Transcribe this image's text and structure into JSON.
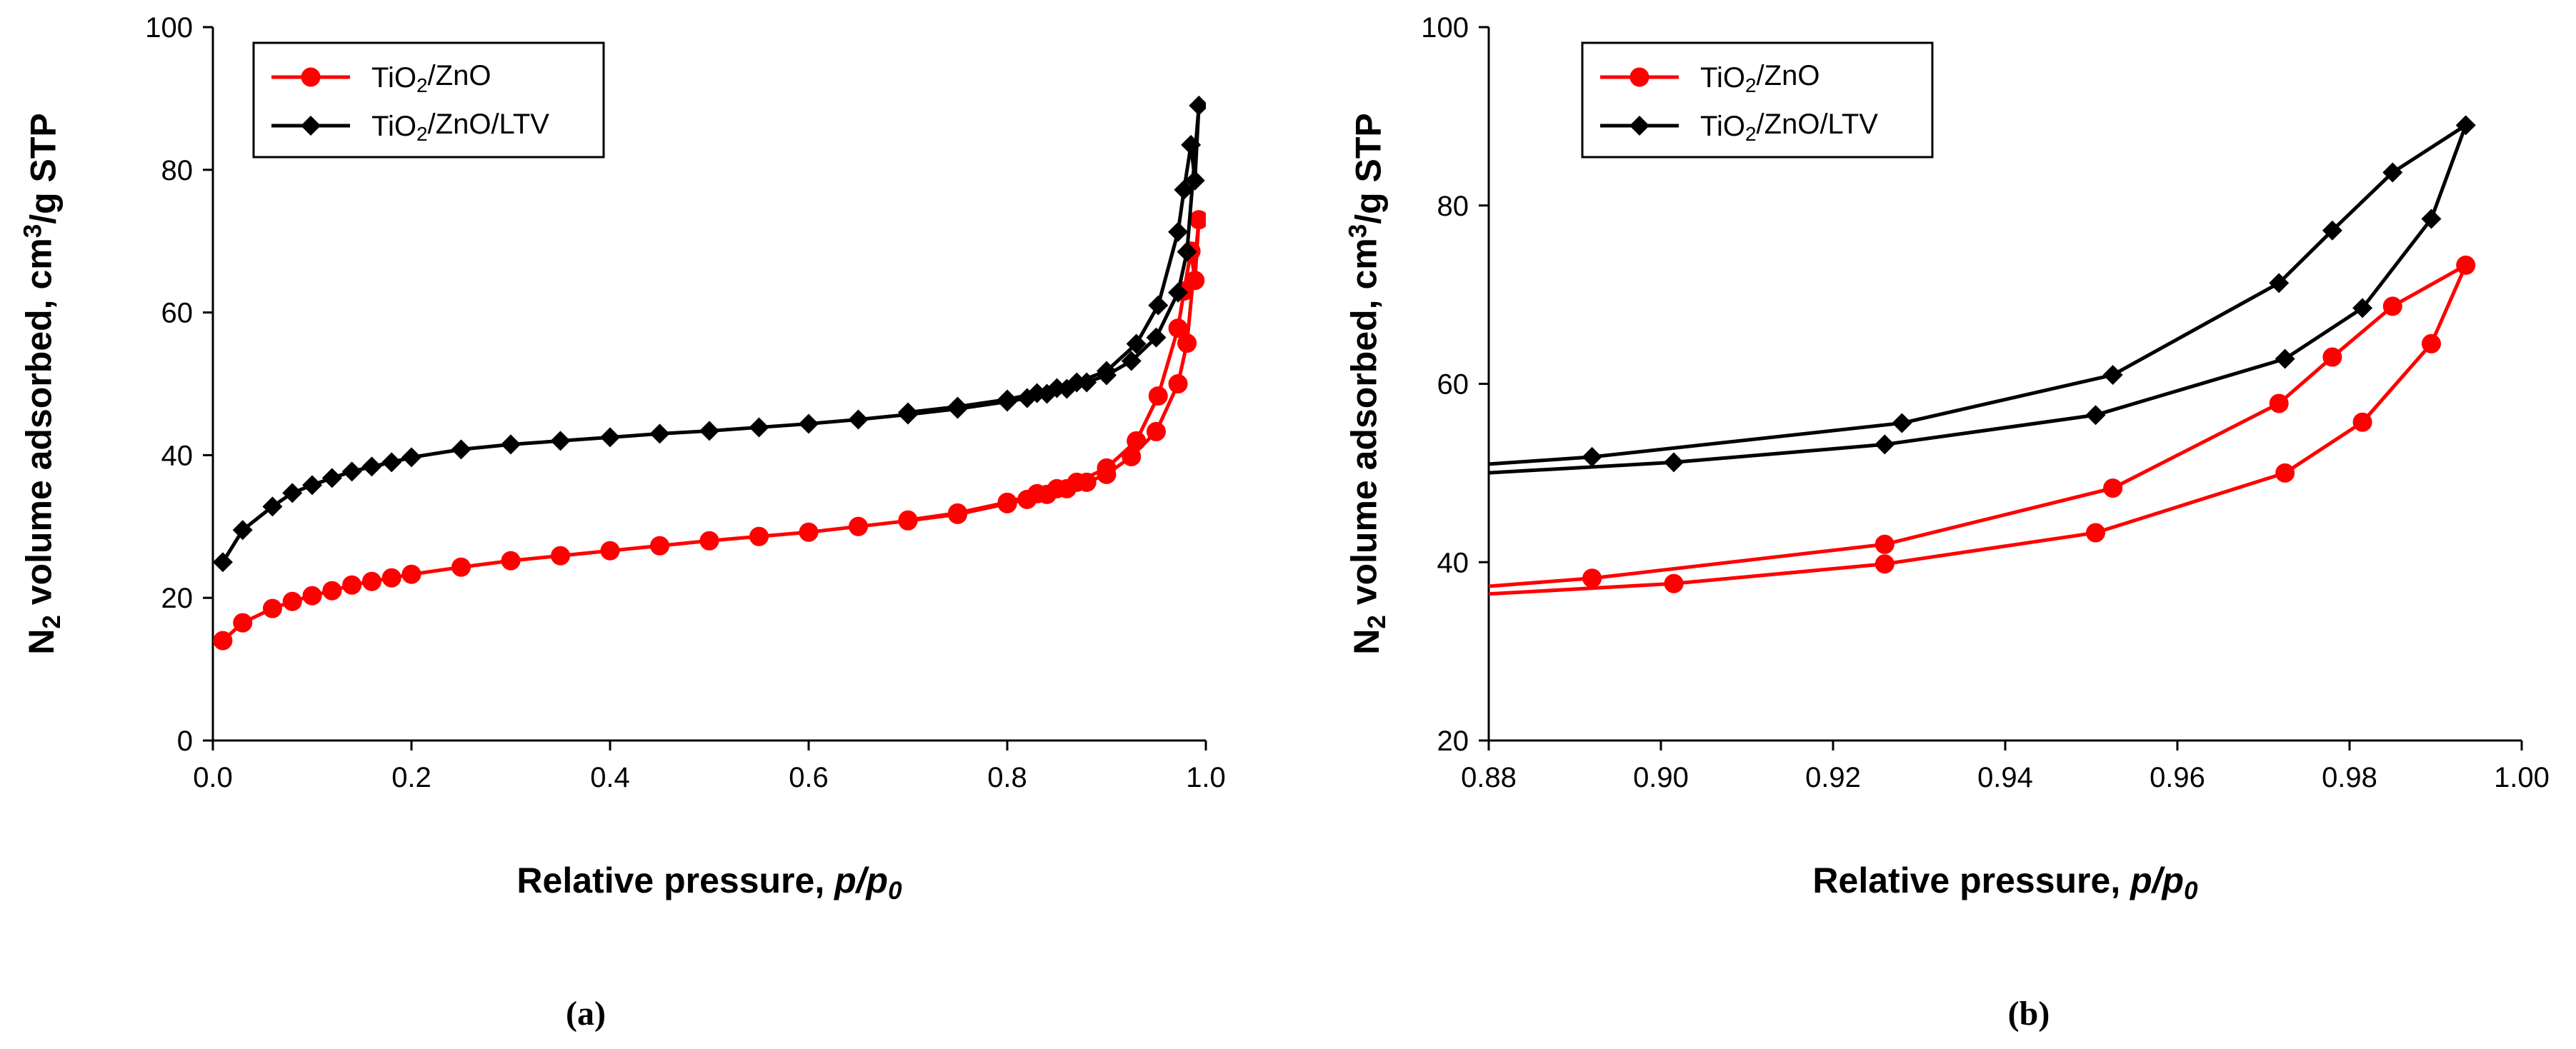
{
  "colors": {
    "red": "#ff0000",
    "black": "#000000"
  },
  "chart_data": [
    {
      "type": "line",
      "caption": "(a)",
      "xlabel": "Relative pressure, p/p0",
      "ylabel": "N2 volume adsorbed, cm3/g STP",
      "xlim": [
        0,
        1.0
      ],
      "ylim": [
        0,
        100
      ],
      "xticks": [
        "0.0",
        "0.2",
        "0.4",
        "0.6",
        "0.8",
        "1.0"
      ],
      "yticks": [
        "0",
        "20",
        "40",
        "60",
        "80",
        "100"
      ],
      "grid": false,
      "legend_position": "top-left",
      "series": [
        {
          "name": "TiO2/ZnO",
          "color": "#ff0000",
          "marker": "circle",
          "x": [
            0.01,
            0.03,
            0.06,
            0.08,
            0.1,
            0.12,
            0.14,
            0.16,
            0.18,
            0.2,
            0.25,
            0.3,
            0.35,
            0.4,
            0.45,
            0.5,
            0.55,
            0.6,
            0.65,
            0.7,
            0.75,
            0.8,
            0.82,
            0.84,
            0.86,
            0.88,
            0.9,
            0.925,
            0.95,
            0.972,
            0.981,
            0.993,
            0.989,
            0.985,
            0.978,
            0.972,
            0.952,
            0.93,
            0.9,
            0.87,
            0.85,
            0.83,
            0.8,
            0.75,
            0.7
          ],
          "y": [
            14,
            16.5,
            18.5,
            19.5,
            20.3,
            21,
            21.8,
            22.3,
            22.8,
            23.3,
            24.3,
            25.2,
            25.9,
            26.6,
            27.3,
            28,
            28.6,
            29.2,
            30,
            30.8,
            31.7,
            33.2,
            33.8,
            34.5,
            35.3,
            36.2,
            37.3,
            39.8,
            43.3,
            50,
            55.7,
            73,
            64.5,
            68.6,
            63,
            57.8,
            48.3,
            42,
            38.2,
            36.2,
            35.3,
            34.6,
            33.4,
            31.9,
            30.9
          ]
        },
        {
          "name": "TiO2/ZnO/LTV",
          "color": "#000000",
          "marker": "diamond",
          "x": [
            0.01,
            0.03,
            0.06,
            0.08,
            0.1,
            0.12,
            0.14,
            0.16,
            0.18,
            0.2,
            0.25,
            0.3,
            0.35,
            0.4,
            0.45,
            0.5,
            0.55,
            0.6,
            0.65,
            0.7,
            0.75,
            0.8,
            0.82,
            0.84,
            0.86,
            0.88,
            0.9,
            0.925,
            0.95,
            0.972,
            0.981,
            0.993,
            0.989,
            0.985,
            0.978,
            0.972,
            0.952,
            0.93,
            0.9,
            0.87,
            0.85,
            0.83,
            0.8,
            0.75,
            0.7
          ],
          "y": [
            25,
            29.5,
            32.8,
            34.7,
            35.8,
            36.8,
            37.7,
            38.4,
            39,
            39.7,
            40.8,
            41.5,
            42,
            42.5,
            43,
            43.4,
            43.9,
            44.4,
            45,
            45.7,
            46.5,
            47.5,
            48,
            48.6,
            49.3,
            50.2,
            51.2,
            53.2,
            56.5,
            62.8,
            68.5,
            89,
            78.5,
            83.5,
            77.2,
            71.3,
            61,
            55.6,
            51.8,
            50.2,
            49.4,
            48.7,
            47.8,
            46.8,
            46
          ]
        }
      ]
    },
    {
      "type": "line",
      "caption": "(b)",
      "xlabel": "Relative pressure, p/p0",
      "ylabel": "N2 volume adsorbed, cm3/g STP",
      "xlim": [
        0.88,
        1.0
      ],
      "ylim": [
        20,
        100
      ],
      "xticks": [
        "0.88",
        "0.90",
        "0.92",
        "0.94",
        "0.96",
        "0.98",
        "1.00"
      ],
      "yticks": [
        "20",
        "40",
        "60",
        "80",
        "100"
      ],
      "grid": false,
      "legend_position": "top-left",
      "series": [
        {
          "name": "TiO2/ZnO",
          "color": "#ff0000",
          "marker": "circle",
          "x": [
            0.872,
            0.9015,
            0.926,
            0.9505,
            0.9725,
            0.9815,
            0.9895,
            0.9935,
            0.985,
            0.978,
            0.9718,
            0.9525,
            0.926,
            0.892,
            0.88
          ],
          "y": [
            36,
            37.6,
            39.8,
            43.3,
            50,
            55.7,
            64.5,
            73.3,
            68.7,
            63,
            57.8,
            48.3,
            42,
            38.2,
            37.3
          ],
          "markers_at": [
            1,
            2,
            3,
            4,
            5,
            6,
            7,
            8,
            9,
            10,
            11,
            12,
            13
          ]
        },
        {
          "name": "TiO2/ZnO/LTV",
          "color": "#000000",
          "marker": "diamond",
          "x": [
            0.876,
            0.9015,
            0.926,
            0.9505,
            0.9725,
            0.9815,
            0.9895,
            0.9935,
            0.985,
            0.978,
            0.9718,
            0.9525,
            0.928,
            0.892,
            0.88
          ],
          "y": [
            49.8,
            51.2,
            53.2,
            56.5,
            62.8,
            68.5,
            78.5,
            89,
            83.7,
            77.2,
            71.3,
            61,
            55.6,
            51.8,
            51
          ],
          "markers_at": [
            1,
            2,
            3,
            4,
            5,
            6,
            7,
            8,
            9,
            10,
            11,
            12,
            13
          ]
        }
      ]
    }
  ]
}
